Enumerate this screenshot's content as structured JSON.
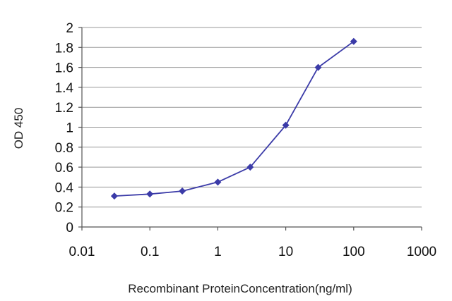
{
  "chart_data": {
    "type": "line",
    "title": "",
    "xlabel": "Recombinant ProteinConcentration(ng/ml)",
    "ylabel": "OD 450",
    "x_scale": "log",
    "xlim": [
      0.01,
      1000
    ],
    "ylim": [
      0,
      2
    ],
    "x_ticks": [
      "0.01",
      "0.1",
      "1",
      "10",
      "100",
      "1000"
    ],
    "y_ticks": [
      "0",
      "0.2",
      "0.4",
      "0.6",
      "0.8",
      "1",
      "1.2",
      "1.4",
      "1.6",
      "1.8",
      "2"
    ],
    "grid": "horizontal",
    "legend": "none",
    "series": [
      {
        "color": "#3b3ba8",
        "x": [
          0.03,
          0.1,
          0.3,
          1,
          3,
          10,
          30,
          100
        ],
        "y": [
          0.31,
          0.33,
          0.36,
          0.45,
          0.6,
          1.02,
          1.6,
          1.86
        ]
      }
    ]
  }
}
